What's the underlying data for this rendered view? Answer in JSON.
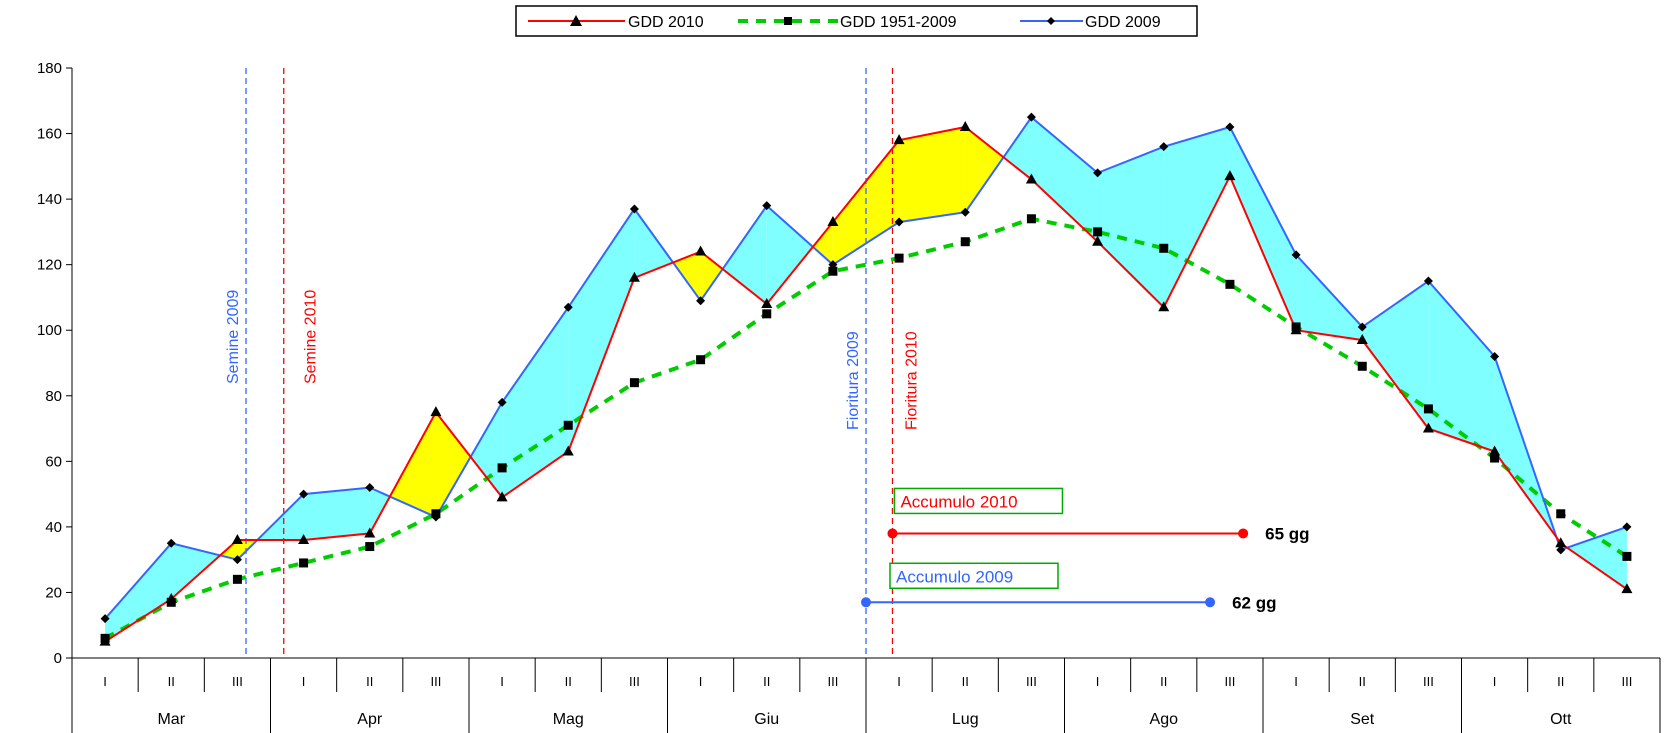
{
  "chart_data": {
    "type": "line",
    "title": "",
    "xlabel": "",
    "ylabel": "",
    "ylim": [
      0,
      180
    ],
    "yticks": [
      0,
      20,
      40,
      60,
      80,
      100,
      120,
      140,
      160,
      180
    ],
    "months": [
      "Mar",
      "Apr",
      "Mag",
      "Giu",
      "Lug",
      "Ago",
      "Set",
      "Ott"
    ],
    "decades": [
      "I",
      "II",
      "III"
    ],
    "colors": {
      "gdd2010": "#ff0000",
      "gdd2009": "#3366ff",
      "gddmean": "#00cc00",
      "fill_2009_above": "#7fffff",
      "fill_2010_above": "#ffff00"
    },
    "series": [
      {
        "name": "GDD 2010",
        "values": [
          5,
          18,
          36,
          36,
          38,
          75,
          49,
          63,
          116,
          124,
          108,
          133,
          158,
          162,
          146,
          127,
          107,
          147,
          100,
          97,
          70,
          63,
          35,
          21
        ]
      },
      {
        "name": "GDD 1951-2009",
        "values": [
          6,
          17,
          24,
          29,
          34,
          44,
          58,
          71,
          84,
          91,
          105,
          118,
          122,
          127,
          134,
          130,
          125,
          114,
          101,
          89,
          76,
          61,
          44,
          31
        ]
      },
      {
        "name": "GDD 2009",
        "values": [
          12,
          35,
          30,
          50,
          52,
          43,
          78,
          107,
          137,
          109,
          138,
          120,
          133,
          136,
          165,
          148,
          156,
          162,
          123,
          101,
          115,
          92,
          33,
          40
        ]
      }
    ],
    "legend_position": "top-center",
    "vlines": [
      {
        "label": "Semine 2009",
        "color": "#3366ff",
        "x": 2.63
      },
      {
        "label": "Semine 2010",
        "color": "#ff0000",
        "x": 3.2
      },
      {
        "label": "Fioritura 2009",
        "color": "#3366ff",
        "x": 12.0
      },
      {
        "label": "Fioritura 2010",
        "color": "#ff0000",
        "x": 12.4
      }
    ],
    "accumulations": [
      {
        "label": "Accumulo 2010",
        "color": "#ff0000",
        "x_start": 12.4,
        "x_end": 17.7,
        "y": 38,
        "days": "65 gg"
      },
      {
        "label": "Accumulo 2009",
        "color": "#3366ff",
        "x_start": 12.0,
        "x_end": 17.2,
        "y": 17,
        "days": "62 gg"
      }
    ]
  }
}
